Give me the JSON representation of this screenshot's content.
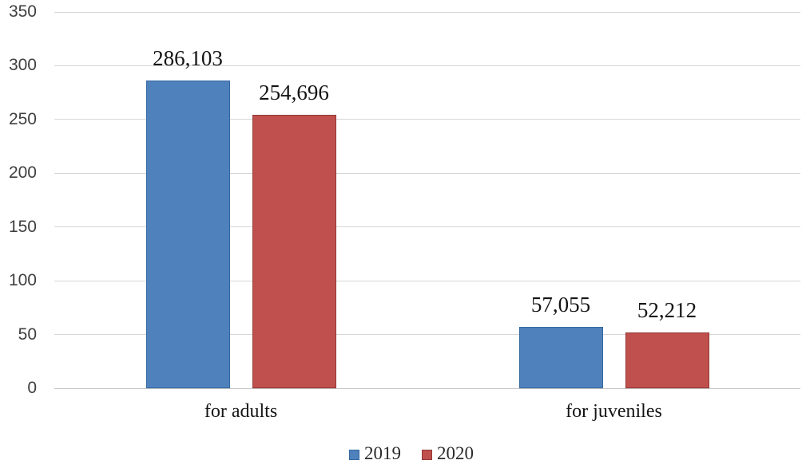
{
  "chart_data": {
    "type": "bar",
    "title": "",
    "categories": [
      "for adults",
      "for juveniles"
    ],
    "series": [
      {
        "name": "2019",
        "color": "#4F81BD",
        "border_color": "#35699F",
        "values": [
          286103,
          57055
        ],
        "value_labels": [
          "286,103",
          "57,055"
        ]
      },
      {
        "name": "2020",
        "color": "#C0504D",
        "border_color": "#933A37",
        "values": [
          254696,
          52212
        ],
        "value_labels": [
          "254,696",
          "52,212"
        ]
      }
    ],
    "y_axis": {
      "ticks": [
        "0",
        "50",
        "100",
        "150",
        "200",
        "250",
        "300",
        "350"
      ],
      "min": 0,
      "max": 350,
      "tick_step": 50,
      "unit_divisor": 1000
    },
    "legend": {
      "position": "bottom",
      "entries": [
        "2019",
        "2020"
      ]
    },
    "grid": true,
    "colors": {
      "gridline": "#D6D6D6",
      "baseline": "#C3C3C3",
      "axis_text": "#3F3F3F",
      "label_text": "#141414"
    }
  }
}
